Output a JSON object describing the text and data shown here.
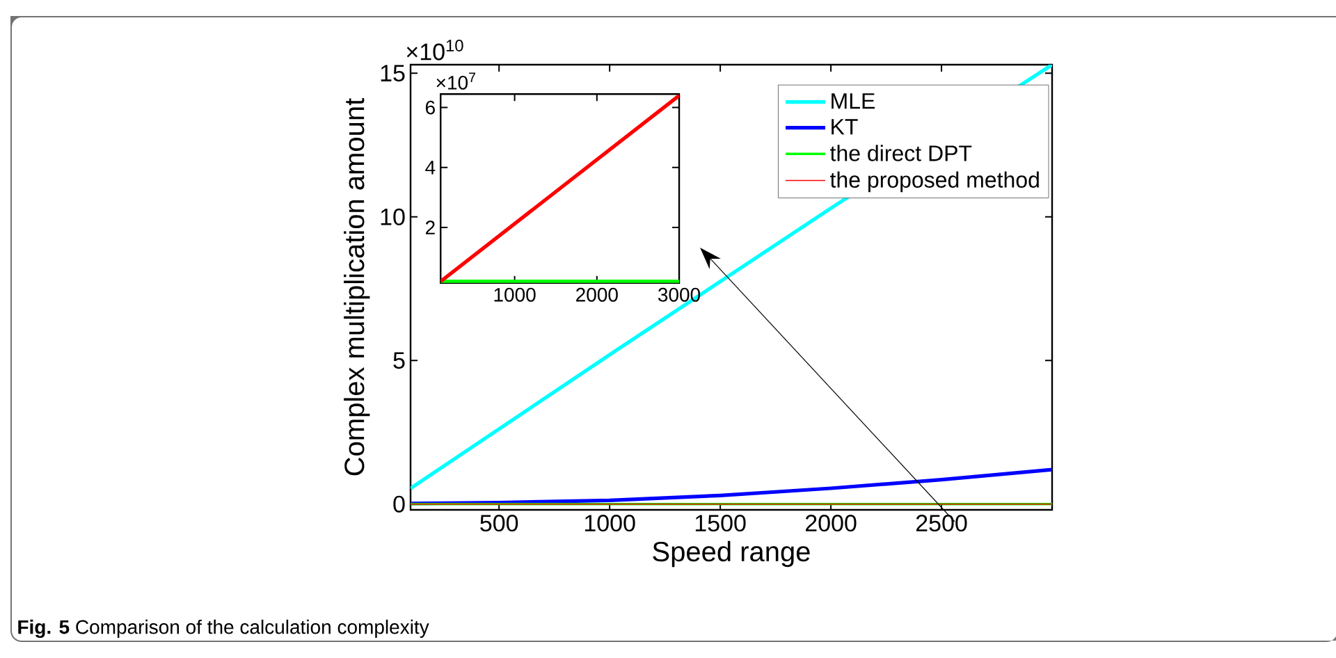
{
  "chart_data": [
    {
      "type": "line",
      "xlabel": "Speed  range",
      "ylabel": "Complex multiplication amount",
      "xlim": [
        100,
        3000
      ],
      "ylim": [
        -0.2,
        15.3
      ],
      "xticks": [
        500,
        1000,
        1500,
        2000,
        2500
      ],
      "yticks": [
        0,
        5,
        10,
        15
      ],
      "legend": "top right",
      "marker": "none",
      "line_style": "solid",
      "annotations": [
        "×10$^{10}$",
        "**Fig. 5** Comparison of the calculation complexity"
      ],
      "series": [
        {
          "name": "MLE",
          "color": "#00ffff",
          "x": [
            100,
            1000,
            2000,
            3000
          ],
          "values": [
            0.55,
            5.2,
            10.3,
            15.3
          ]
        },
        {
          "name": "KT",
          "color": "#0000ff",
          "x": [
            100,
            500,
            1000,
            1500,
            2000,
            2500,
            3000
          ],
          "values": [
            0.02,
            0.05,
            0.13,
            0.3,
            0.55,
            0.85,
            1.2
          ]
        },
        {
          "name": "the direct DPT",
          "color": "#00ff00",
          "x": [
            100,
            3000
          ],
          "values": [
            0,
            0
          ]
        },
        {
          "name": "the proposed method",
          "color": "#ff0000",
          "x": [
            100,
            3000
          ],
          "values": [
            0,
            0
          ]
        }
      ]
    },
    {
      "type": "line",
      "xlim": [
        100,
        3000
      ],
      "ylim": [
        0.15,
        6.45
      ],
      "xticks": [
        1000,
        2000,
        3000
      ],
      "yticks": [
        2,
        4,
        6
      ],
      "marker": "none",
      "line_style": "solid",
      "annotations": [
        "×10$^{7}$"
      ],
      "series": [
        {
          "color": "#00ff00",
          "x": [
            100,
            3000
          ],
          "values": [
            0.2,
            0.2
          ]
        },
        {
          "color": "#ff0000",
          "x": [
            100,
            3000
          ],
          "values": [
            0.2,
            6.4
          ]
        }
      ]
    }
  ]
}
